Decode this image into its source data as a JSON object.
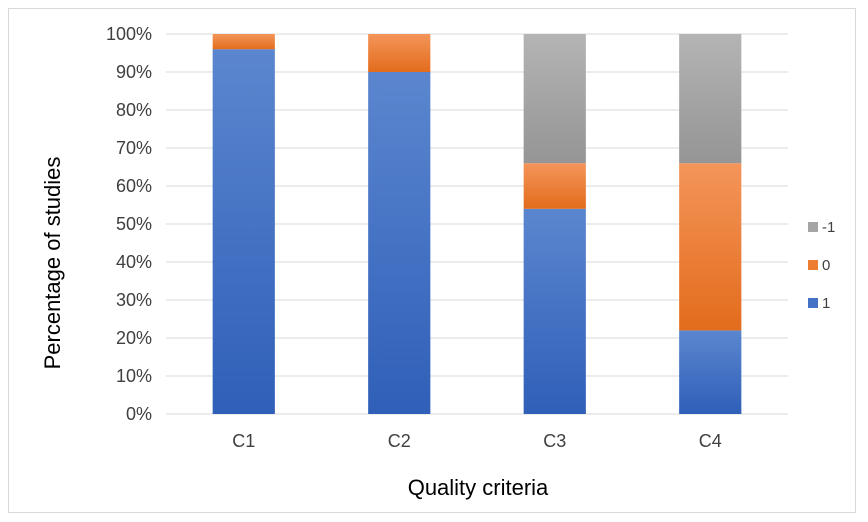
{
  "chart_data": {
    "type": "bar",
    "stacked": true,
    "categories": [
      "C1",
      "C2",
      "C3",
      "C4"
    ],
    "series": [
      {
        "name": "1",
        "values": [
          96,
          90,
          54,
          22
        ],
        "color": "#4472c4"
      },
      {
        "name": "0",
        "values": [
          4,
          10,
          12,
          44
        ],
        "color": "#ed7d31"
      },
      {
        "name": "-1",
        "values": [
          0,
          0,
          34,
          34
        ],
        "color": "#a5a5a5"
      }
    ],
    "xlabel": "Quality criteria",
    "ylabel": "Percentage of studies",
    "ylim": [
      0,
      100
    ],
    "yticks": [
      "0%",
      "10%",
      "20%",
      "30%",
      "40%",
      "50%",
      "60%",
      "70%",
      "80%",
      "90%",
      "100%"
    ],
    "legend_order": [
      "-1",
      "0",
      "1"
    ],
    "legend_position": "right",
    "grid": true
  }
}
